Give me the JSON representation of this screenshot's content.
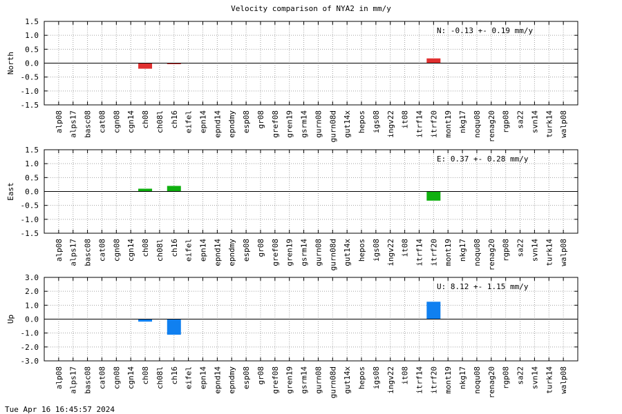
{
  "title": "Velocity comparison of NYA2 in mm/y",
  "timestamp": "Tue Apr 16 16:45:57 2024",
  "chart_data": {
    "type": "bar",
    "grid": true,
    "categories": [
      "alp08",
      "alps17",
      "basc08",
      "cat08",
      "cgn08",
      "cgn14",
      "ch08",
      "ch08l",
      "ch16",
      "eifel",
      "epn14",
      "epnd14",
      "epndmy",
      "esp08",
      "gr08",
      "gref08",
      "gren19",
      "gsrm14",
      "gurn08",
      "gurn08d",
      "gut14x",
      "hepos",
      "igs08",
      "ingv22",
      "it08",
      "itrf14",
      "itrf20",
      "mont19",
      "nkg17",
      "noqu08",
      "renag20",
      "rgp08",
      "sa22",
      "svn14",
      "turk14",
      "walp08"
    ],
    "panels": [
      {
        "component": "North",
        "ylabel": "North",
        "color": "#e03030",
        "ylim": [
          -1.5,
          1.5
        ],
        "yticks": [
          "1.5",
          "1.0",
          "0.5",
          "0.0",
          "-0.5",
          "-1.0",
          "-1.5"
        ],
        "annotation": "N:  -0.13 +-  0.19 mm/y",
        "values": [
          0,
          0,
          0,
          0,
          0,
          0,
          -0.2,
          0,
          -0.03,
          0,
          0,
          0,
          0,
          0,
          0,
          0,
          0,
          0,
          0,
          0,
          0,
          0,
          0,
          0,
          0,
          0,
          0.17,
          0,
          0,
          0,
          0,
          0,
          0,
          0,
          0,
          0
        ]
      },
      {
        "component": "East",
        "ylabel": "East",
        "color": "#10b010",
        "ylim": [
          -1.5,
          1.5
        ],
        "yticks": [
          "1.5",
          "1.0",
          "0.5",
          "0.0",
          "-0.5",
          "-1.0",
          "-1.5"
        ],
        "annotation": "E:   0.37 +-  0.28 mm/y",
        "values": [
          0,
          0,
          0,
          0,
          0,
          0,
          0.1,
          0,
          0.2,
          0,
          0,
          0,
          0,
          0,
          0,
          0,
          0,
          0,
          0,
          0,
          0,
          0,
          0,
          0,
          0,
          0,
          -0.33,
          0,
          0,
          0,
          0,
          0,
          0,
          0,
          0,
          0
        ]
      },
      {
        "component": "Up",
        "ylabel": "Up",
        "color": "#1080f0",
        "ylim": [
          -3.0,
          3.0
        ],
        "yticks": [
          "3.0",
          "2.0",
          "1.0",
          "0.0",
          "-1.0",
          "-2.0",
          "-3.0"
        ],
        "annotation": "U:   8.12 +-  1.15 mm/y",
        "values": [
          0,
          0,
          0,
          0,
          0,
          0,
          -0.18,
          0,
          -1.12,
          0,
          0,
          0,
          0,
          0,
          0,
          0,
          0,
          0,
          0,
          0,
          0,
          0,
          0,
          0,
          0,
          0,
          1.25,
          0,
          0,
          0,
          0,
          0,
          0,
          0,
          0,
          0
        ]
      }
    ]
  }
}
